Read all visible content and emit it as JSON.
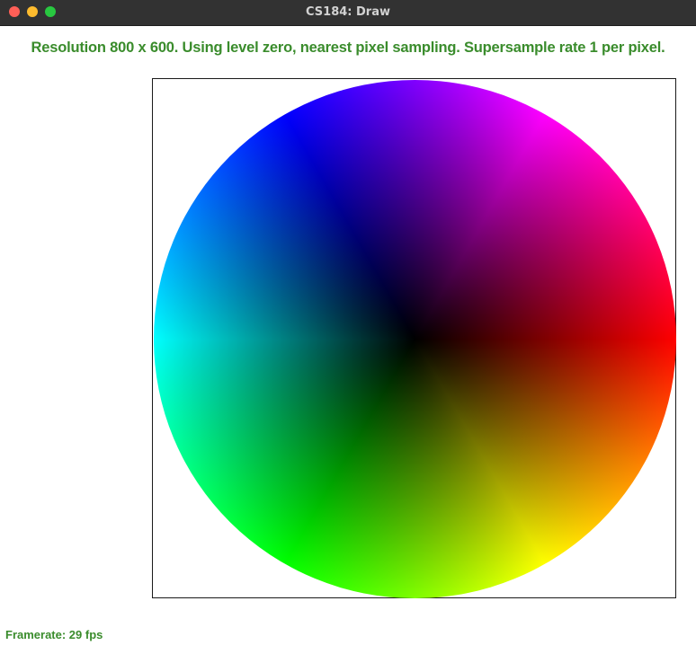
{
  "window": {
    "title": "CS184: Draw",
    "controls": {
      "close_color": "#ff5f57",
      "minimize_color": "#febc2e",
      "maximize_color": "#28c840"
    }
  },
  "status": {
    "text": "Resolution 800 x 600. Using level zero, nearest pixel sampling. Supersample rate 1 per pixel.",
    "color": "#3a8c2c"
  },
  "canvas": {
    "content": "color-wheel"
  },
  "footer": {
    "framerate_text": "Framerate: 29 fps"
  }
}
